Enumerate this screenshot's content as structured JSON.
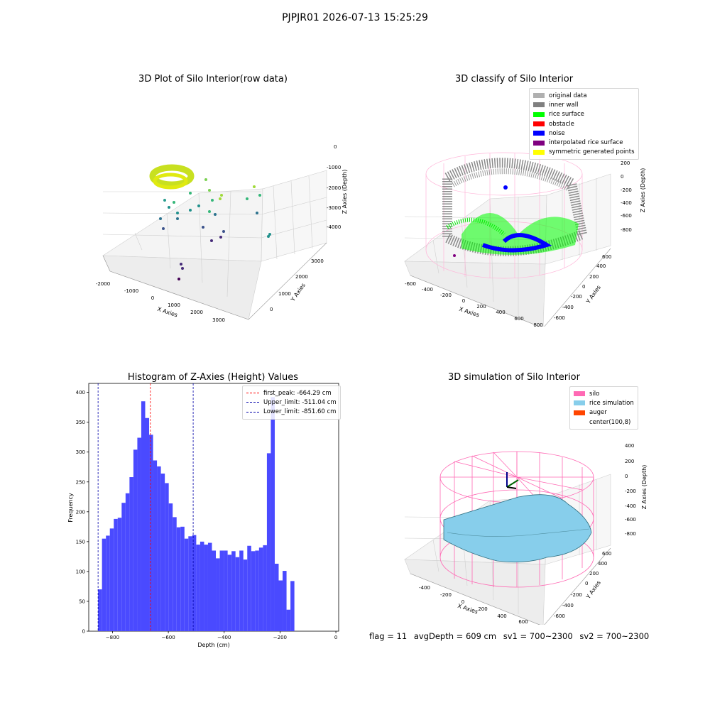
{
  "suptitle": "PJPJR01 2026-07-13 15:25:29",
  "panels": {
    "raw": {
      "title": "3D Plot of Silo Interior(row data)",
      "xlabel": "X Axies",
      "ylabel": "Y Axies",
      "zlabel": "Z Axies (Depth)",
      "xticks": [
        "-2000",
        "-1000",
        "0",
        "1000",
        "2000",
        "3000"
      ],
      "yticks": [
        "0",
        "1000",
        "2000",
        "3000"
      ],
      "zticks": [
        "0",
        "-1000",
        "-2000",
        "-3000",
        "-4000"
      ]
    },
    "classify": {
      "title": "3D classify of Silo Interior",
      "xlabel": "X Axies",
      "ylabel": "Y Axies",
      "zlabel": "Z Axies (Depth)",
      "xticks": [
        "-600",
        "-400",
        "-200",
        "0",
        "200",
        "400",
        "600",
        "800"
      ],
      "yticks": [
        "-600",
        "-400",
        "-200",
        "0",
        "200",
        "400",
        "600"
      ],
      "zticks": [
        "200",
        "0",
        "-200",
        "-400",
        "-600",
        "-800"
      ],
      "legend": [
        {
          "label": "original data",
          "color": "#b0b0b0"
        },
        {
          "label": "inner wall",
          "color": "#808080"
        },
        {
          "label": "rice surface",
          "color": "#00ff00"
        },
        {
          "label": "obstacle",
          "color": "#ff0000"
        },
        {
          "label": "noise",
          "color": "#0000ff"
        },
        {
          "label": "interpolated rice surface",
          "color": "#800080"
        },
        {
          "label": "symmetric generated points",
          "color": "#ffff00"
        }
      ]
    },
    "histogram": {
      "title": "Histogram of Z-Axies (Height) Values",
      "xlabel": "Depth (cm)",
      "ylabel": "Frequency",
      "legend": [
        {
          "label": "first_peak: -664.29 cm",
          "color": "#ff0000"
        },
        {
          "label": "Upper_limit: -511.04 cm",
          "color": "#0000aa"
        },
        {
          "label": "Lower_limit: -851.60 cm",
          "color": "#0000aa"
        }
      ]
    },
    "simulation": {
      "title": "3D simulation of Silo Interior",
      "xlabel": "X Axies",
      "ylabel": "Y Axies",
      "zlabel": "Z Axies (Depth)",
      "xticks": [
        "-400",
        "-200",
        "0",
        "200",
        "400",
        "600"
      ],
      "yticks": [
        "-600",
        "-400",
        "-200",
        "0",
        "200",
        "400",
        "600"
      ],
      "zticks": [
        "400",
        "200",
        "0",
        "-200",
        "-400",
        "-600",
        "-800"
      ],
      "legend": [
        {
          "label": "silo",
          "color": "#ff69b4"
        },
        {
          "label": "rice simulation",
          "color": "#87ceeb"
        },
        {
          "label": "auger",
          "color": "#ff4500"
        },
        {
          "label": "center(100,8)",
          "color": "#ffffff"
        }
      ]
    }
  },
  "footer": {
    "flag": "flag = 11",
    "avg": "avgDepth = 609 cm",
    "sv1": "sv1 = 700~2300",
    "sv2": "sv2 = 700~2300"
  },
  "chart_data": {
    "type": "bar",
    "title": "Histogram of Z-Axies (Height) Values",
    "xlabel": "Depth (cm)",
    "ylabel": "Frequency",
    "bar_color": "#4a4aff",
    "xlim": [
      -885,
      10
    ],
    "ylim": [
      0,
      415
    ],
    "xticks": [
      -800,
      -600,
      -400,
      -200,
      0
    ],
    "yticks": [
      0,
      50,
      100,
      150,
      200,
      250,
      300,
      350,
      400
    ],
    "bin_start": -851.6,
    "bin_width": 14.06,
    "values": [
      70,
      155,
      160,
      172,
      188,
      190,
      215,
      231,
      258,
      304,
      324,
      385,
      357,
      329,
      286,
      276,
      264,
      248,
      214,
      191,
      174,
      175,
      155,
      159,
      161,
      145,
      150,
      145,
      148,
      135,
      122,
      135,
      135,
      128,
      134,
      124,
      135,
      120,
      143,
      134,
      135,
      140,
      144,
      298,
      392,
      113,
      85,
      101,
      36,
      84
    ],
    "vlines": [
      {
        "label": "first_peak: -664.29 cm",
        "x": -664.29,
        "color": "#ff0000"
      },
      {
        "label": "Upper_limit: -511.04 cm",
        "x": -511.04,
        "color": "#0000aa"
      },
      {
        "label": "Lower_limit: -851.60 cm",
        "x": -851.6,
        "color": "#0000aa"
      }
    ],
    "legend_position": "upper-right"
  }
}
